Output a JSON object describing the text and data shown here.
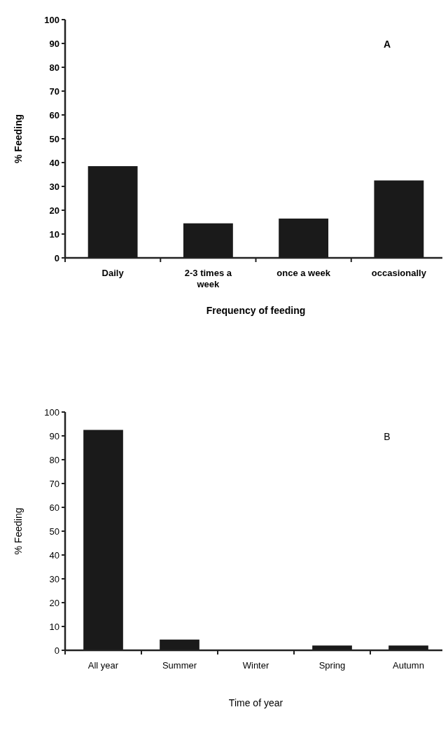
{
  "chart_data": [
    {
      "type": "bar",
      "categories": [
        "Daily",
        "2-3 times a week",
        "once a week",
        "occasionally"
      ],
      "values": [
        38.5,
        14.5,
        16.5,
        32.5
      ],
      "color": "#1a1a1a",
      "ylim": [
        0,
        100
      ],
      "yticks": [
        0,
        10,
        20,
        30,
        40,
        50,
        60,
        70,
        80,
        90,
        100
      ],
      "ylabel": "% Feeding",
      "xlabel": "Frequency of feeding",
      "annotations": [
        "A"
      ],
      "grid": false
    },
    {
      "type": "bar",
      "categories": [
        "All year",
        "Summer",
        "Winter",
        "Spring",
        "Autumn"
      ],
      "values": [
        92.5,
        4.5,
        0,
        2,
        2
      ],
      "color": "#1a1a1a",
      "ylim": [
        0,
        100
      ],
      "yticks": [
        0,
        10,
        20,
        30,
        40,
        50,
        60,
        70,
        80,
        90,
        100
      ],
      "ylabel": "% Feeding",
      "xlabel": "Time of year",
      "annotations": [
        "B"
      ],
      "grid": false
    }
  ]
}
